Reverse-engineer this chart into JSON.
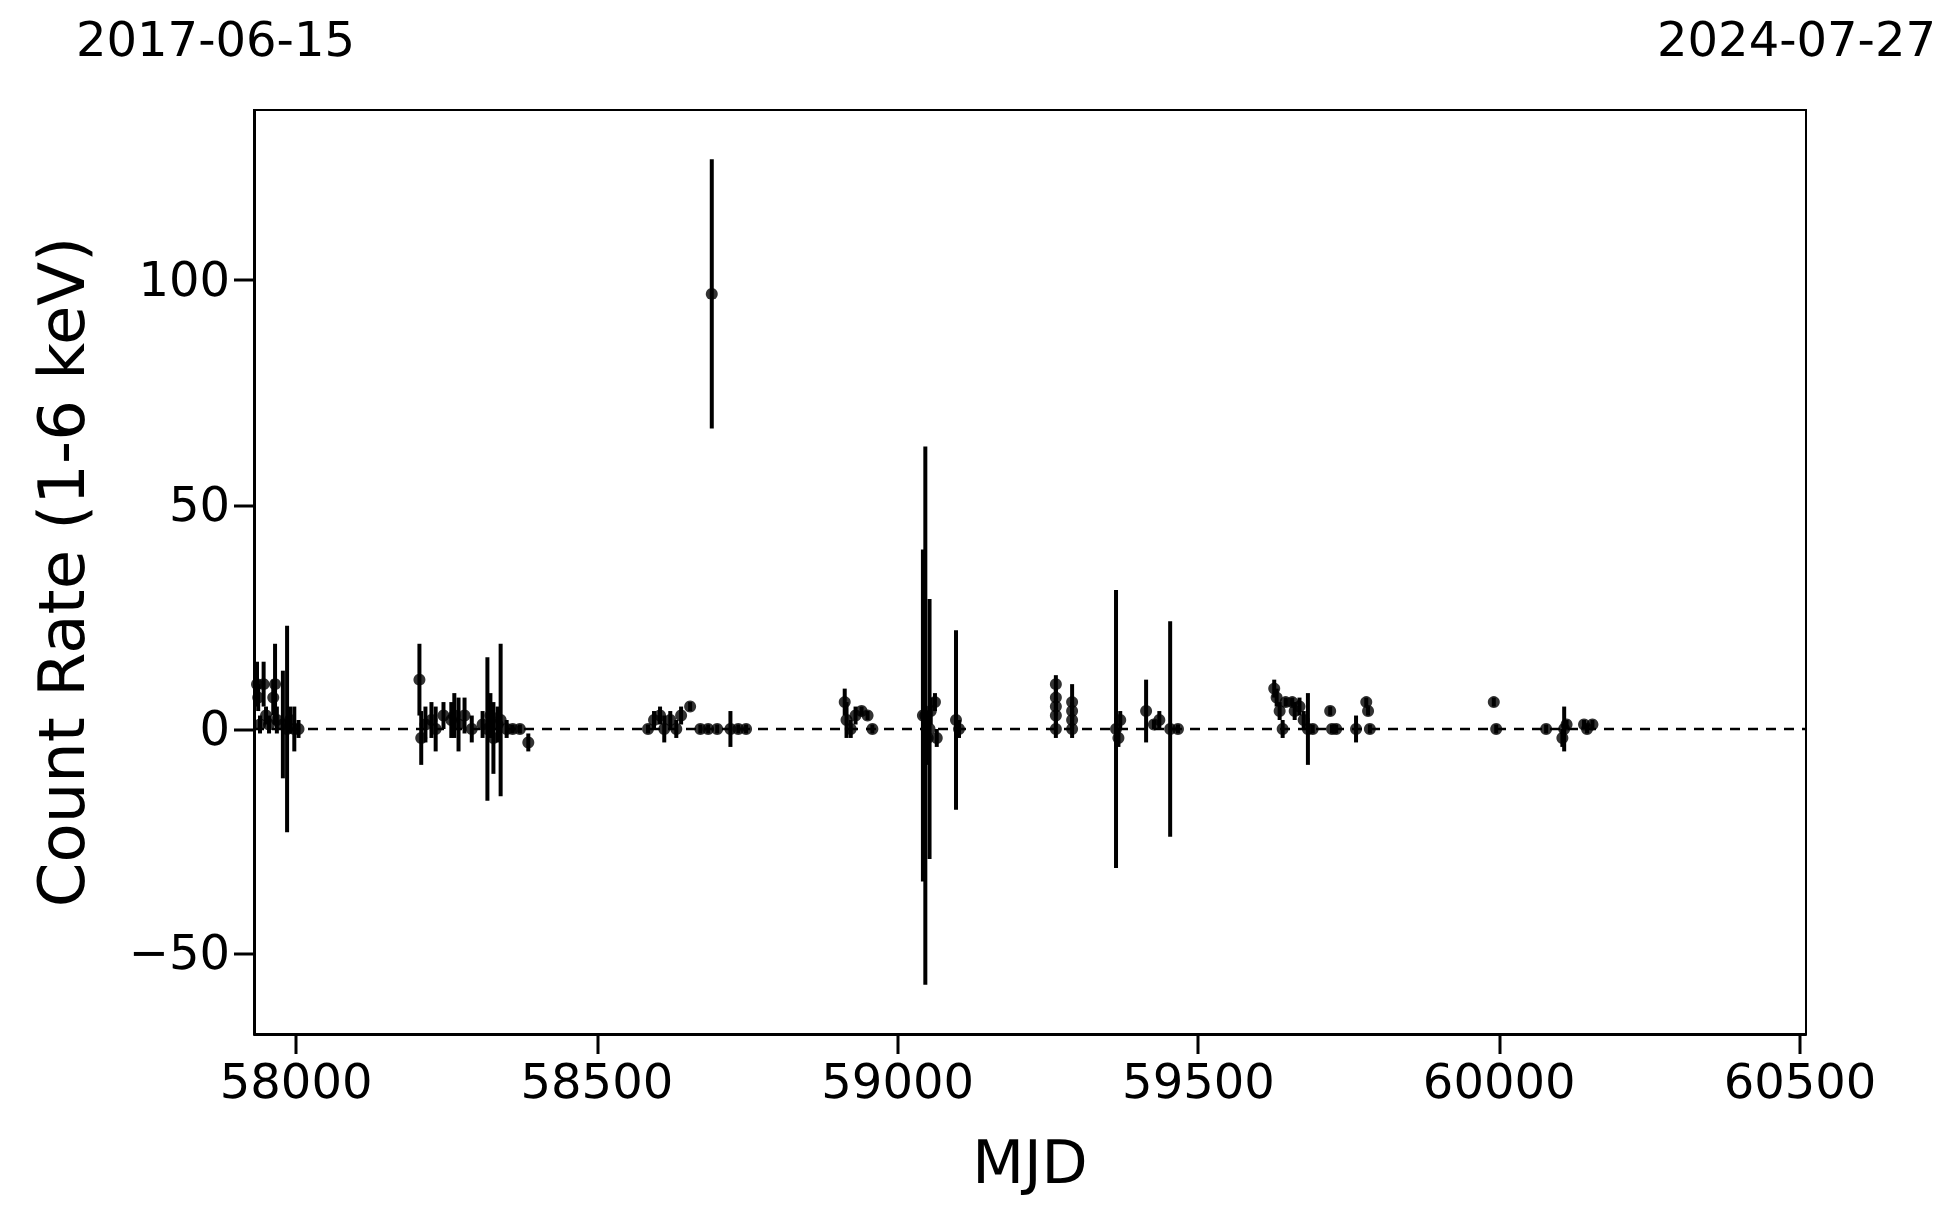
{
  "chart_data": {
    "type": "scatter",
    "xlabel": "MJD",
    "ylabel": "Count Rate (1-6 keV)",
    "annotations": [
      "2017-06-15",
      "2024-07-27"
    ],
    "x": [
      57935,
      57937,
      57940,
      57946,
      57950,
      57955,
      57962,
      57965,
      57968,
      57978,
      57985,
      57990,
      57997,
      58004,
      58205,
      58208,
      58215,
      58225,
      58232,
      58245,
      58258,
      58263,
      58270,
      58280,
      58292,
      58310,
      58318,
      58323,
      58328,
      58335,
      58340,
      58350,
      58360,
      58372,
      58386,
      58585,
      58595,
      58605,
      58612,
      58622,
      58632,
      58640,
      58655,
      58672,
      58685,
      58691,
      58700,
      58722,
      58735,
      58748,
      58912,
      58915,
      58922,
      58930,
      58940,
      58950,
      58958,
      59042,
      59046,
      59050,
      59053,
      59055,
      59062,
      59065,
      59097,
      59102,
      59263,
      59263,
      59263,
      59263,
      59263,
      59290,
      59290,
      59290,
      59290,
      59363,
      59367,
      59370,
      59413,
      59426,
      59435,
      59453,
      59466,
      59626,
      59630,
      59635,
      59640,
      59645,
      59656,
      59660,
      59668,
      59675,
      59682,
      59690,
      59719,
      59722,
      59729,
      59762,
      59779,
      59782,
      59785,
      59991,
      59995,
      60078,
      60105,
      60108,
      60112,
      60141,
      60146,
      60155
    ],
    "values": [
      10,
      7,
      1,
      10,
      3,
      1,
      7,
      10,
      2,
      1,
      0,
      2,
      0,
      0,
      11,
      -2,
      1,
      2,
      0,
      3,
      2,
      3,
      1,
      3,
      0,
      1,
      0,
      3,
      -2,
      1,
      2,
      0,
      0,
      0,
      -3,
      0,
      2,
      3,
      0,
      2,
      0,
      3,
      5,
      0,
      0,
      97,
      0,
      0,
      0,
      0,
      6,
      2,
      0,
      3,
      4,
      3,
      0,
      3,
      3,
      -2,
      0,
      4,
      6,
      -2,
      2,
      0,
      10,
      7,
      5,
      3,
      0,
      6,
      4,
      2,
      0,
      0,
      -2,
      2,
      4,
      1,
      2,
      0,
      0,
      9,
      7,
      4,
      0,
      6,
      6,
      4,
      5,
      2,
      0,
      0,
      4,
      0,
      0,
      0,
      6,
      4,
      0,
      6,
      0,
      0,
      -2,
      0,
      1,
      1,
      0,
      1
    ],
    "errors": [
      5,
      3,
      2,
      5,
      2,
      2,
      4,
      9,
      3,
      12,
      23,
      3,
      5,
      2,
      8,
      6,
      4,
      4,
      5,
      3,
      4,
      5,
      6,
      4,
      3,
      3,
      16,
      5,
      8,
      4,
      17,
      2,
      1,
      1,
      2,
      1,
      2,
      2,
      3,
      2,
      2,
      2,
      1,
      1,
      1,
      30,
      1,
      4,
      1,
      1,
      3,
      4,
      2,
      2,
      1,
      1,
      1,
      37,
      60,
      6,
      29,
      3,
      2,
      2,
      20,
      2,
      2,
      2,
      2,
      2,
      2,
      4,
      2,
      2,
      2,
      31,
      2,
      2,
      7,
      1,
      2,
      24,
      1,
      2,
      2,
      2,
      2,
      1,
      1,
      2,
      2,
      2,
      8,
      1,
      1,
      1,
      1,
      3,
      1,
      1,
      1,
      1,
      1,
      1,
      2,
      5,
      1,
      1,
      1,
      1
    ],
    "color": "#000000",
    "marker": "circle",
    "xlim": [
      57930,
      60510
    ],
    "xticks": [
      58000,
      58500,
      59000,
      59500,
      60000,
      60500
    ],
    "ylim": [
      -68,
      138
    ],
    "yticks": [
      -50,
      0,
      50,
      100
    ],
    "grid": false,
    "ref_lines": [
      {
        "axis": "y",
        "value": 0,
        "color": "#000000",
        "line_style": "dashed"
      }
    ]
  }
}
